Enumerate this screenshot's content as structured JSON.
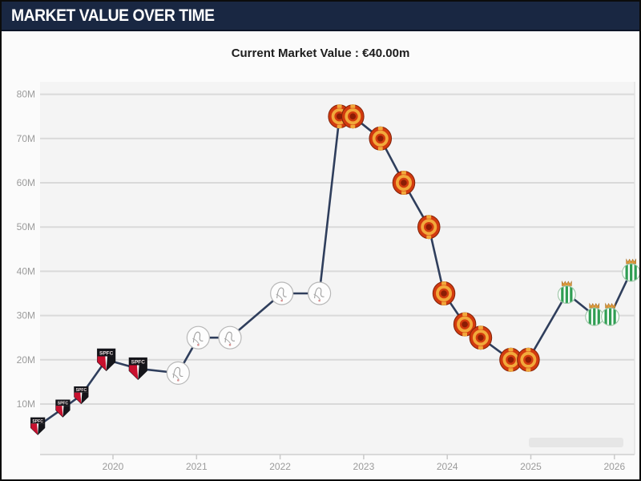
{
  "header": {
    "title": "MARKET VALUE OVER TIME",
    "current_value": "Current Market Value : €40.00m"
  },
  "colors": {
    "titlebar_bg": "#192742",
    "titlebar_text": "#ffffff",
    "line": "#2f3e5c",
    "grid": "#d9d9d9",
    "axis_text": "#9b9b9b",
    "plot_bg": "#f4f4f4",
    "page_bg": "#fbfbfb",
    "saopaulo_red": "#c8102e",
    "manutd_red": "#d23a0e",
    "manutd_gold": "#f2a93b",
    "betis_green": "#2f9e53",
    "betis_crown": "#e09b3d"
  },
  "chart_data": {
    "type": "line",
    "title": "Market value over time",
    "unit": "EUR millions",
    "current_value_eur_m": 40.0,
    "xlabel": "",
    "ylabel": "",
    "x_ticks": [
      2020,
      2021,
      2022,
      2023,
      2024,
      2025,
      2026
    ],
    "y_ticks": [
      {
        "v": 80,
        "label": "80M"
      },
      {
        "v": 70,
        "label": "70M"
      },
      {
        "v": 60,
        "label": "60M"
      },
      {
        "v": 50,
        "label": "50M"
      },
      {
        "v": 40,
        "label": "40M"
      },
      {
        "v": 30,
        "label": "30M"
      },
      {
        "v": 20,
        "label": "20M"
      },
      {
        "v": 10,
        "label": "10M"
      }
    ],
    "xlim": [
      2019.05,
      2026.3
    ],
    "ylim": [
      0,
      83
    ],
    "grid": "horizontal",
    "legend": "none",
    "marker_style": "club-crests",
    "clubs": {
      "saopaulo": "Sao Paulo FC",
      "ajax": "AFC Ajax",
      "manutd": "Manchester United",
      "betis": "Real Betis"
    },
    "series": [
      {
        "name": "Market value (EUR m)",
        "points": [
          {
            "t": 2019.1,
            "v": 5,
            "club": "saopaulo"
          },
          {
            "t": 2019.4,
            "v": 9,
            "club": "saopaulo"
          },
          {
            "t": 2019.62,
            "v": 12,
            "club": "saopaulo"
          },
          {
            "t": 2019.92,
            "v": 20,
            "club": "saopaulo"
          },
          {
            "t": 2020.3,
            "v": 18,
            "club": "saopaulo"
          },
          {
            "t": 2020.78,
            "v": 17,
            "club": "ajax"
          },
          {
            "t": 2021.02,
            "v": 25,
            "club": "ajax"
          },
          {
            "t": 2021.4,
            "v": 25,
            "club": "ajax"
          },
          {
            "t": 2022.02,
            "v": 35,
            "club": "ajax"
          },
          {
            "t": 2022.47,
            "v": 35,
            "club": "ajax"
          },
          {
            "t": 2022.71,
            "v": 75,
            "club": "manutd"
          },
          {
            "t": 2022.87,
            "v": 75,
            "club": "manutd"
          },
          {
            "t": 2023.2,
            "v": 70,
            "club": "manutd"
          },
          {
            "t": 2023.48,
            "v": 60,
            "club": "manutd"
          },
          {
            "t": 2023.78,
            "v": 50,
            "club": "manutd"
          },
          {
            "t": 2023.96,
            "v": 35,
            "club": "manutd"
          },
          {
            "t": 2024.21,
            "v": 28,
            "club": "manutd"
          },
          {
            "t": 2024.4,
            "v": 25,
            "club": "manutd"
          },
          {
            "t": 2024.76,
            "v": 20,
            "club": "manutd"
          },
          {
            "t": 2024.97,
            "v": 20,
            "club": "manutd"
          },
          {
            "t": 2025.43,
            "v": 35,
            "club": "betis"
          },
          {
            "t": 2025.76,
            "v": 30,
            "club": "betis"
          },
          {
            "t": 2025.95,
            "v": 30,
            "club": "betis"
          },
          {
            "t": 2026.2,
            "v": 40,
            "club": "betis"
          }
        ]
      }
    ]
  }
}
